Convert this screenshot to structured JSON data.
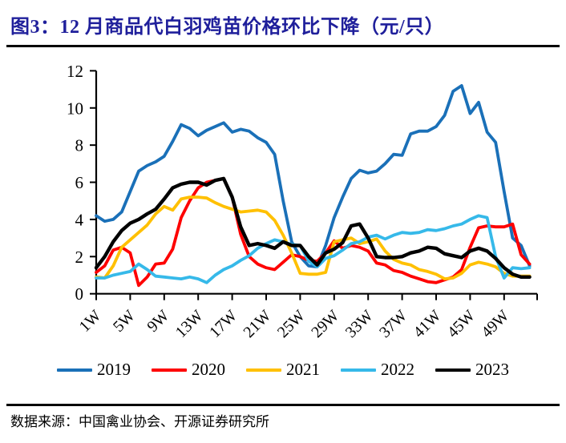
{
  "header": {
    "title": "图3：12 月商品代白羽鸡苗价格环比下降（元/只）"
  },
  "footer": {
    "source_label": "数据来源：中国禽业协会、开源证券研究所"
  },
  "colors": {
    "title_text": "#1F1F9B",
    "axis": "#000000",
    "divider": "#000000",
    "series_2019": "#1A70B8",
    "series_2020": "#FE0000",
    "series_2021": "#FFC000",
    "series_2022": "#36B9E9",
    "series_2023": "#000000"
  },
  "chart_data": {
    "type": "line",
    "x_unit": "week-of-year",
    "x_range": [
      1,
      52
    ],
    "x_tick_labels": [
      "1W",
      "5W",
      "9W",
      "13W",
      "17W",
      "21W",
      "25W",
      "29W",
      "33W",
      "37W",
      "41W",
      "45W",
      "49W"
    ],
    "x_tick_weeks": [
      1,
      5,
      9,
      13,
      17,
      21,
      25,
      29,
      33,
      37,
      41,
      45,
      49
    ],
    "ylabel": "",
    "ylim": [
      0,
      12
    ],
    "y_ticks": [
      0,
      2,
      4,
      6,
      8,
      10,
      12
    ],
    "grid": false,
    "legend_position": "bottom",
    "series": [
      {
        "name": "2019",
        "color": "#1A70B8",
        "values": [
          4.2,
          3.9,
          4.0,
          4.4,
          5.5,
          6.6,
          6.9,
          7.1,
          7.4,
          8.2,
          9.1,
          8.9,
          8.5,
          8.8,
          9.0,
          9.2,
          8.7,
          8.85,
          8.75,
          8.4,
          8.15,
          7.5,
          5.0,
          2.8,
          2.0,
          1.5,
          1.45,
          2.6,
          4.1,
          5.2,
          6.2,
          6.65,
          6.5,
          6.6,
          7.0,
          7.5,
          7.45,
          8.6,
          8.75,
          8.75,
          9.0,
          9.6,
          10.9,
          11.2,
          9.7,
          10.3,
          8.7,
          8.15,
          5.5,
          3.0,
          2.6,
          1.5
        ]
      },
      {
        "name": "2020",
        "color": "#FE0000",
        "values": [
          1.15,
          1.5,
          2.35,
          2.5,
          2.2,
          0.45,
          0.9,
          1.6,
          1.65,
          2.4,
          4.1,
          5.0,
          5.7,
          6.0,
          6.1,
          6.2,
          5.2,
          3.2,
          2.0,
          1.6,
          1.4,
          1.3,
          1.7,
          2.1,
          2.0,
          1.8,
          1.75,
          2.2,
          2.85,
          2.45,
          2.6,
          2.5,
          2.3,
          1.65,
          1.55,
          1.25,
          1.15,
          0.95,
          0.8,
          0.65,
          0.6,
          0.75,
          0.9,
          1.3,
          2.5,
          3.55,
          3.65,
          3.6,
          3.6,
          3.75,
          2.1,
          1.6
        ]
      },
      {
        "name": "2021",
        "color": "#FFC000",
        "values": [
          0.9,
          0.85,
          1.5,
          2.5,
          2.9,
          3.3,
          3.7,
          4.3,
          4.7,
          4.5,
          5.1,
          5.2,
          5.2,
          5.15,
          4.9,
          4.7,
          4.55,
          4.4,
          4.45,
          4.5,
          4.4,
          3.95,
          3.15,
          2.2,
          1.1,
          1.05,
          1.05,
          1.15,
          2.8,
          2.9,
          3.0,
          2.7,
          2.8,
          2.95,
          2.3,
          1.85,
          1.65,
          1.55,
          1.3,
          1.2,
          1.05,
          0.8,
          0.85,
          1.1,
          1.55,
          1.7,
          1.6,
          1.45,
          1.1,
          0.95,
          0.95,
          0.95
        ]
      },
      {
        "name": "2022",
        "color": "#36B9E9",
        "values": [
          0.85,
          0.85,
          1.0,
          1.1,
          1.2,
          1.6,
          1.3,
          0.95,
          0.9,
          0.85,
          0.8,
          0.9,
          0.8,
          0.6,
          1.0,
          1.3,
          1.5,
          1.8,
          2.05,
          2.45,
          2.7,
          2.9,
          2.8,
          2.65,
          2.6,
          1.75,
          1.45,
          1.9,
          2.05,
          2.35,
          2.7,
          2.8,
          3.05,
          3.15,
          2.95,
          3.15,
          3.3,
          3.25,
          3.3,
          3.45,
          3.4,
          3.5,
          3.65,
          3.75,
          4.0,
          4.2,
          4.1,
          2.0,
          0.85,
          1.4,
          1.35,
          1.4
        ]
      },
      {
        "name": "2023",
        "color": "#000000",
        "values": [
          1.4,
          2.0,
          2.8,
          3.4,
          3.8,
          4.0,
          4.3,
          4.55,
          5.1,
          5.7,
          5.9,
          6.0,
          6.0,
          5.85,
          6.1,
          6.2,
          5.2,
          3.6,
          2.6,
          2.7,
          2.6,
          2.45,
          2.8,
          2.6,
          2.6,
          2.0,
          1.55,
          2.2,
          2.4,
          2.75,
          3.65,
          3.75,
          3.0,
          2.0,
          1.95,
          1.95,
          2.0,
          2.2,
          2.3,
          2.5,
          2.45,
          2.15,
          2.05,
          1.95,
          2.3,
          2.45,
          2.3,
          1.9,
          1.4,
          1.05,
          0.9,
          0.9
        ]
      }
    ]
  }
}
